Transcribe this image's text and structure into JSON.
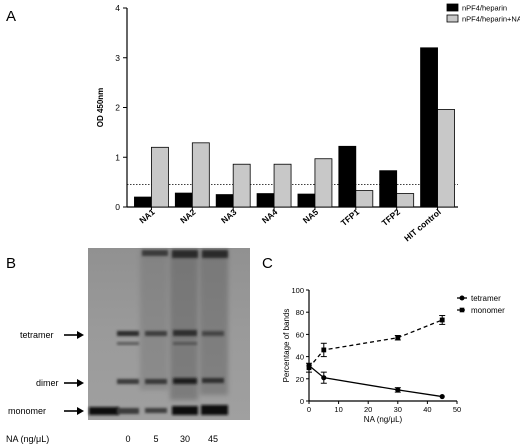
{
  "panels": {
    "a_letter": "A",
    "b_letter": "B",
    "c_letter": "C"
  },
  "chart_data": [
    {
      "panel": "A",
      "type": "bar",
      "categories": [
        "NA1",
        "NA2",
        "NA3",
        "NA4",
        "NA5",
        "TFP1",
        "TFP2",
        "HIT control"
      ],
      "series": [
        {
          "name": "nPF4/heparin",
          "color": "#000000",
          "values": [
            0.2,
            0.28,
            0.25,
            0.27,
            0.26,
            1.22,
            0.73,
            3.2
          ]
        },
        {
          "name": "nPF4/heparin+NA",
          "color": "#c8c8c8",
          "values": [
            1.2,
            1.29,
            0.86,
            0.86,
            0.97,
            0.33,
            0.27,
            1.96
          ]
        }
      ],
      "ylabel": "OD 450nm",
      "ylim": [
        0,
        4
      ],
      "yticks": [
        "0",
        "1",
        "2",
        "3",
        "4"
      ],
      "threshold": 0.45,
      "legend_position": "top-right"
    },
    {
      "panel": "C",
      "type": "line",
      "x": [
        0,
        5,
        30,
        45
      ],
      "series": [
        {
          "name": "tetramer",
          "style": "solid",
          "marker": "circle",
          "values": [
            32,
            21,
            10,
            4
          ],
          "errors": [
            0,
            5,
            2,
            0
          ]
        },
        {
          "name": "monomer",
          "style": "dashed",
          "marker": "square",
          "values": [
            30,
            46,
            57,
            73
          ],
          "errors": [
            4,
            6,
            2,
            4
          ]
        }
      ],
      "xlabel": "NA (ng/μL)",
      "ylabel": "Percentage of bands",
      "xlim": [
        0,
        50
      ],
      "ylim": [
        0,
        100
      ],
      "xticks": [
        "0",
        "10",
        "20",
        "30",
        "40",
        "50"
      ],
      "yticks": [
        "0",
        "20",
        "40",
        "60",
        "80",
        "100"
      ],
      "legend_position": "top-right"
    }
  ],
  "gel": {
    "band_labels": [
      "tetramer",
      "dimer",
      "monomer"
    ],
    "x_title": "NA (ng/μL)",
    "lane_labels": [
      "0",
      "5",
      "30",
      "45"
    ]
  }
}
